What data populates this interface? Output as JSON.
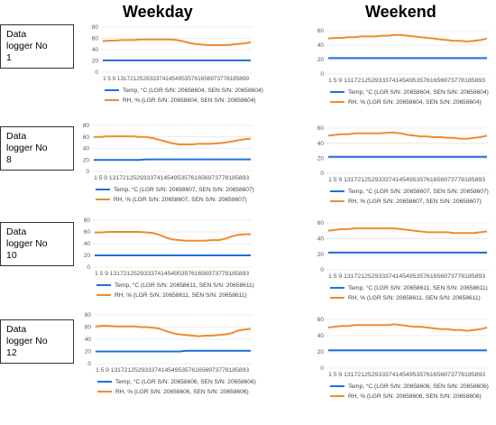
{
  "column_titles": {
    "weekday": "Weekday",
    "weekend": "Weekend"
  },
  "rows": [
    {
      "label": [
        "Data",
        "logger No",
        "1"
      ]
    },
    {
      "label": [
        "Data",
        "logger No",
        "8"
      ]
    },
    {
      "label": [
        "Data",
        "logger No",
        "10"
      ]
    },
    {
      "label": [
        "Data",
        "logger No",
        "12"
      ]
    }
  ],
  "colors": {
    "temp": "#1F6FE0",
    "rh": "#F28A2E",
    "grid": "#D9D9D9",
    "tick": "#595959"
  },
  "chart_data": [
    {
      "type": "line",
      "panel": "weekday-1",
      "ylim": [
        0,
        80
      ],
      "yticks": [
        0,
        20,
        40,
        60,
        80
      ],
      "xticks_text": "1 5 9 13172125293337414549535761656973778185899",
      "series": [
        {
          "name": "Temp, °C (LGR S/N: 20658604, SEN S/N: 20658604)",
          "values": [
            21,
            21,
            21,
            21,
            21,
            21,
            21,
            21,
            21,
            21,
            21,
            21,
            21,
            21,
            21,
            21,
            21,
            21,
            21,
            21,
            21,
            21,
            21,
            21,
            21
          ]
        },
        {
          "name": "RH, % (LGR S/N: 20658604, SEN S/N: 20658604)",
          "values": [
            55,
            56,
            56,
            57,
            57,
            57,
            58,
            58,
            58,
            58,
            58,
            58,
            57,
            55,
            52,
            50,
            49,
            48,
            48,
            48,
            48,
            49,
            50,
            51,
            53
          ]
        }
      ]
    },
    {
      "type": "line",
      "panel": "weekend-1",
      "ylim": [
        0,
        60
      ],
      "yticks": [
        0,
        20,
        40,
        60
      ],
      "xticks_text": "1 5 9 13172125293337414549535761656973778185893",
      "series": [
        {
          "name": "Temp, °C (LGR S/N: 20658604, SEN S/N: 20658604)",
          "values": [
            22,
            22,
            22,
            22,
            22,
            22,
            22,
            22,
            22,
            22,
            22,
            22,
            22,
            22,
            22,
            22,
            22,
            22,
            22,
            22,
            22,
            22,
            22,
            22,
            22
          ]
        },
        {
          "name": "RH, % (LGR S/N: 20658604, SEN S/N: 20658604)",
          "values": [
            49,
            50,
            50,
            51,
            51,
            52,
            52,
            52,
            53,
            53,
            54,
            54,
            53,
            52,
            51,
            50,
            49,
            48,
            47,
            46,
            46,
            45,
            46,
            47,
            49
          ]
        }
      ]
    },
    {
      "type": "line",
      "panel": "weekday-8",
      "ylim": [
        0,
        80
      ],
      "yticks": [
        0,
        20,
        40,
        60,
        80
      ],
      "xticks_text": "1 5 9 13172125293337414549535761656973778185893",
      "series": [
        {
          "name": "Temp, °C (LGR S/N: 20658607, SEN S/N: 20658607)",
          "values": [
            20,
            20,
            20,
            20,
            20,
            20,
            20,
            20,
            21,
            21,
            21,
            21,
            21,
            21,
            21,
            21,
            21,
            21,
            21,
            21,
            21,
            21,
            21,
            21,
            21
          ]
        },
        {
          "name": "RH, % (LGR S/N: 20658607, SEN S/N: 20658607)",
          "values": [
            60,
            60,
            61,
            61,
            61,
            61,
            61,
            60,
            60,
            58,
            55,
            52,
            49,
            47,
            47,
            47,
            48,
            48,
            48,
            49,
            50,
            52,
            54,
            56,
            57
          ]
        }
      ]
    },
    {
      "type": "line",
      "panel": "weekend-8",
      "ylim": [
        0,
        60
      ],
      "yticks": [
        0,
        20,
        40,
        60
      ],
      "xticks_text": "1 5 9 13172125293337414549535761656973778185893",
      "series": [
        {
          "name": "Temp, °C (LGR S/N: 20658607, SEN S/N: 20658607)",
          "values": [
            22,
            22,
            22,
            22,
            22,
            22,
            22,
            22,
            22,
            22,
            22,
            22,
            22,
            22,
            22,
            22,
            22,
            22,
            22,
            22,
            22,
            22,
            22,
            22,
            22
          ]
        },
        {
          "name": "RH, % (LGR S/N: 20658607, SEN S/N: 20658607)",
          "values": [
            50,
            51,
            52,
            52,
            53,
            53,
            53,
            53,
            53,
            54,
            54,
            53,
            51,
            50,
            49,
            49,
            48,
            48,
            47,
            47,
            46,
            46,
            47,
            48,
            50
          ]
        }
      ]
    },
    {
      "type": "line",
      "panel": "weekday-10",
      "ylim": [
        0,
        80
      ],
      "yticks": [
        0,
        20,
        40,
        60,
        80
      ],
      "xticks_text": "1 5 9 13172125293337414549535761656973778185893",
      "series": [
        {
          "name": "Temp, °C (LGR S/N: 20658611, SEN S/N: 20658611)",
          "values": [
            20,
            20,
            20,
            20,
            20,
            20,
            20,
            20,
            20,
            20,
            20,
            20,
            20,
            20,
            20,
            20,
            20,
            20,
            20,
            20,
            20,
            20,
            20,
            20,
            20
          ]
        },
        {
          "name": "RH, % (LGR S/N: 20658611, SEN S/N: 20658611)",
          "values": [
            59,
            59,
            60,
            60,
            60,
            60,
            60,
            60,
            59,
            58,
            55,
            50,
            47,
            46,
            45,
            45,
            45,
            45,
            46,
            46,
            48,
            52,
            55,
            56,
            56
          ]
        }
      ]
    },
    {
      "type": "line",
      "panel": "weekend-10",
      "ylim": [
        0,
        60
      ],
      "yticks": [
        0,
        20,
        40,
        60
      ],
      "xticks_text": "1 5 9 13172125293337414549535761656973778185893",
      "series": [
        {
          "name": "Temp, °C (LGR S/N: 20658611, SEN S/N: 20658611)",
          "values": [
            22,
            22,
            22,
            22,
            22,
            22,
            22,
            22,
            22,
            22,
            22,
            22,
            22,
            22,
            22,
            22,
            22,
            22,
            22,
            22,
            22,
            22,
            22,
            22,
            22
          ]
        },
        {
          "name": "RH, % (LGR S/N: 20658611, SEN S/N: 20658611)",
          "values": [
            50,
            51,
            52,
            52,
            53,
            53,
            53,
            53,
            53,
            53,
            53,
            52,
            51,
            50,
            49,
            48,
            48,
            48,
            48,
            47,
            47,
            47,
            47,
            48,
            49
          ]
        }
      ]
    },
    {
      "type": "line",
      "panel": "weekday-12",
      "ylim": [
        0,
        80
      ],
      "yticks": [
        0,
        20,
        40,
        60,
        80
      ],
      "xticks_text": "1 5 9 13172125293337414549535761656973778185893",
      "series": [
        {
          "name": "Temp, °C (LGR S/N: 20658606, SEN S/N: 20658606)",
          "values": [
            20,
            20,
            20,
            20,
            20,
            20,
            20,
            20,
            20,
            20,
            20,
            20,
            20,
            20,
            21,
            21,
            21,
            21,
            21,
            21,
            21,
            21,
            21,
            21,
            21
          ]
        },
        {
          "name": "RH, % (LGR S/N: 20658606, SEN S/N: 20658606)",
          "values": [
            61,
            62,
            62,
            61,
            61,
            61,
            61,
            60,
            60,
            59,
            57,
            53,
            50,
            48,
            47,
            46,
            45,
            46,
            46,
            47,
            48,
            50,
            54,
            56,
            57
          ]
        }
      ]
    },
    {
      "type": "line",
      "panel": "weekend-12",
      "ylim": [
        0,
        60
      ],
      "yticks": [
        0,
        20,
        40,
        60
      ],
      "xticks_text": "1 5 9 13172125293337414549535761656973778185893",
      "series": [
        {
          "name": "Temp, °C (LGR S/N: 20658606, SEN S/N: 20658606)",
          "values": [
            22,
            22,
            22,
            22,
            22,
            22,
            22,
            22,
            22,
            22,
            22,
            22,
            22,
            22,
            22,
            22,
            22,
            22,
            22,
            22,
            22,
            22,
            22,
            22,
            22
          ]
        },
        {
          "name": "RH, % (LGR S/N: 20658606, SEN S/N: 20658606)",
          "values": [
            50,
            51,
            52,
            52,
            53,
            53,
            53,
            53,
            53,
            53,
            54,
            53,
            52,
            51,
            51,
            50,
            49,
            48,
            48,
            47,
            47,
            46,
            47,
            48,
            50
          ]
        }
      ]
    }
  ]
}
